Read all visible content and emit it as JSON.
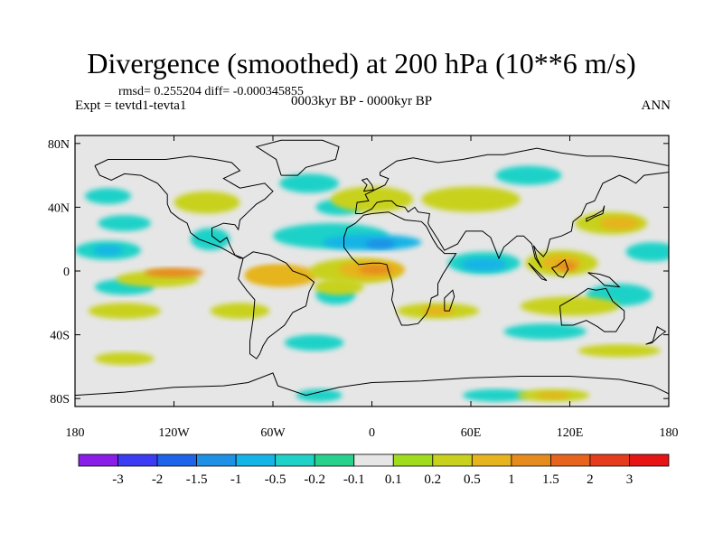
{
  "header": {
    "title": "Divergence (smoothed) at 200 hPa (10**6 m/s)",
    "stats": "rmsd= 0.255204 diff= -0.000345855",
    "experiment": "Expt = tevtd1-tevta1",
    "period": "0003kyr BP - 0000kyr BP",
    "season": "ANN"
  },
  "axes": {
    "lat_ticks": [
      {
        "lat": 80,
        "label": "80N"
      },
      {
        "lat": 40,
        "label": "40N"
      },
      {
        "lat": 0,
        "label": "0"
      },
      {
        "lat": -40,
        "label": "40S"
      },
      {
        "lat": -80,
        "label": "80S"
      }
    ],
    "lon_ticks": [
      {
        "lon": -180,
        "label": "180"
      },
      {
        "lon": -120,
        "label": "120W"
      },
      {
        "lon": -60,
        "label": "60W"
      },
      {
        "lon": 0,
        "label": "0"
      },
      {
        "lon": 60,
        "label": "60E"
      },
      {
        "lon": 120,
        "label": "120E"
      },
      {
        "lon": 180,
        "label": "180"
      }
    ]
  },
  "colorbar": {
    "colors": [
      "#8a1ee6",
      "#3c3cf5",
      "#1e64eb",
      "#1e91e6",
      "#14b4e6",
      "#1ed2c8",
      "#28d28c",
      "#e6e6e6",
      "#a0dc1e",
      "#c8d21e",
      "#e6b41e",
      "#e68c1e",
      "#e6641e",
      "#e63c1e",
      "#e61414"
    ],
    "labels": [
      "-3",
      "-2",
      "-1.5",
      "-1",
      "-0.5",
      "-0.2",
      "-0.1",
      "0.1",
      "0.2",
      "0.5",
      "1",
      "1.5",
      "2",
      "3"
    ]
  },
  "map_data": {
    "projection": "cylindrical-equidistant",
    "extent": {
      "lon": [
        -180,
        180
      ],
      "lat": [
        -90,
        90
      ]
    },
    "field": "200 hPa divergence difference (smoothed)",
    "regions": [
      {
        "level": "-0.2",
        "lon": -160,
        "lat": 47,
        "rx": 14,
        "ry": 5
      },
      {
        "level": "-0.2",
        "lon": -38,
        "lat": 55,
        "rx": 18,
        "ry": 6
      },
      {
        "level": "-0.2",
        "lon": -20,
        "lat": 40,
        "rx": 14,
        "ry": 5
      },
      {
        "level": "-0.2",
        "lon": 95,
        "lat": 60,
        "rx": 20,
        "ry": 6
      },
      {
        "level": "-0.2",
        "lon": -150,
        "lat": 30,
        "rx": 16,
        "ry": 5
      },
      {
        "level": "-0.2",
        "lon": -160,
        "lat": 13,
        "rx": 20,
        "ry": 6
      },
      {
        "level": "-0.5",
        "lon": -160,
        "lat": 13,
        "rx": 9,
        "ry": 3
      },
      {
        "level": "-0.2",
        "lon": -98,
        "lat": 20,
        "rx": 12,
        "ry": 7
      },
      {
        "level": "-0.2",
        "lon": -25,
        "lat": 22,
        "rx": 35,
        "ry": 8
      },
      {
        "level": "-0.5",
        "lon": 0,
        "lat": 18,
        "rx": 30,
        "ry": 5
      },
      {
        "level": "-1",
        "lon": 5,
        "lat": 17,
        "rx": 9,
        "ry": 3
      },
      {
        "level": "-0.2",
        "lon": 68,
        "lat": 5,
        "rx": 22,
        "ry": 7
      },
      {
        "level": "-0.5",
        "lon": 68,
        "lat": 4,
        "rx": 14,
        "ry": 4
      },
      {
        "level": "-0.2",
        "lon": 170,
        "lat": 12,
        "rx": 16,
        "ry": 6
      },
      {
        "level": "-0.2",
        "lon": 150,
        "lat": -15,
        "rx": 20,
        "ry": 7
      },
      {
        "level": "-0.2",
        "lon": -22,
        "lat": -15,
        "rx": 12,
        "ry": 6
      },
      {
        "level": "-0.2",
        "lon": -150,
        "lat": -10,
        "rx": 18,
        "ry": 5
      },
      {
        "level": "-0.2",
        "lon": -35,
        "lat": -45,
        "rx": 18,
        "ry": 5
      },
      {
        "level": "-0.2",
        "lon": 105,
        "lat": -38,
        "rx": 25,
        "ry": 5
      },
      {
        "level": "-0.2",
        "lon": -32,
        "lat": -78,
        "rx": 14,
        "ry": 4
      },
      {
        "level": "-0.2",
        "lon": 75,
        "lat": -78,
        "rx": 20,
        "ry": 4
      },
      {
        "level": "0.2",
        "lon": -130,
        "lat": -5,
        "rx": 25,
        "ry": 5
      },
      {
        "level": "0.5",
        "lon": -55,
        "lat": -3,
        "rx": 22,
        "ry": 7
      },
      {
        "level": "1",
        "lon": -120,
        "lat": -1,
        "rx": 18,
        "ry": 3
      },
      {
        "level": "0.5",
        "lon": -60,
        "lat": -2,
        "rx": 16,
        "ry": 5
      },
      {
        "level": "0.2",
        "lon": -10,
        "lat": 0,
        "rx": 28,
        "ry": 8
      },
      {
        "level": "0.5",
        "lon": 0,
        "lat": 1,
        "rx": 20,
        "ry": 6
      },
      {
        "level": "1",
        "lon": 2,
        "lat": 1,
        "rx": 10,
        "ry": 3
      },
      {
        "level": "0.2",
        "lon": 115,
        "lat": 5,
        "rx": 22,
        "ry": 8
      },
      {
        "level": "0.5",
        "lon": 115,
        "lat": 5,
        "rx": 12,
        "ry": 5
      },
      {
        "level": "1",
        "lon": 118,
        "lat": 3,
        "rx": 6,
        "ry": 3
      },
      {
        "level": "0.2",
        "lon": 145,
        "lat": 30,
        "rx": 22,
        "ry": 7
      },
      {
        "level": "0.5",
        "lon": 150,
        "lat": 30,
        "rx": 12,
        "ry": 4
      },
      {
        "level": "0.2",
        "lon": -100,
        "lat": 43,
        "rx": 20,
        "ry": 7
      },
      {
        "level": "0.2",
        "lon": 0,
        "lat": 45,
        "rx": 25,
        "ry": 8
      },
      {
        "level": "0.2",
        "lon": 60,
        "lat": 45,
        "rx": 30,
        "ry": 8
      },
      {
        "level": "0.2",
        "lon": -20,
        "lat": -10,
        "rx": 15,
        "ry": 5
      },
      {
        "level": "0.2",
        "lon": -150,
        "lat": -25,
        "rx": 22,
        "ry": 5
      },
      {
        "level": "0.2",
        "lon": -80,
        "lat": -25,
        "rx": 18,
        "ry": 5
      },
      {
        "level": "0.2",
        "lon": 40,
        "lat": -25,
        "rx": 25,
        "ry": 5
      },
      {
        "level": "0.5",
        "lon": 40,
        "lat": -25,
        "rx": 10,
        "ry": 3
      },
      {
        "level": "0.2",
        "lon": 120,
        "lat": -22,
        "rx": 30,
        "ry": 6
      },
      {
        "level": "0.2",
        "lon": -150,
        "lat": -55,
        "rx": 18,
        "ry": 4
      },
      {
        "level": "0.2",
        "lon": 150,
        "lat": -50,
        "rx": 25,
        "ry": 4
      },
      {
        "level": "0.2",
        "lon": 110,
        "lat": -78,
        "rx": 22,
        "ry": 4
      },
      {
        "level": "0.5",
        "lon": 110,
        "lat": -78,
        "rx": 10,
        "ry": 2
      }
    ]
  }
}
